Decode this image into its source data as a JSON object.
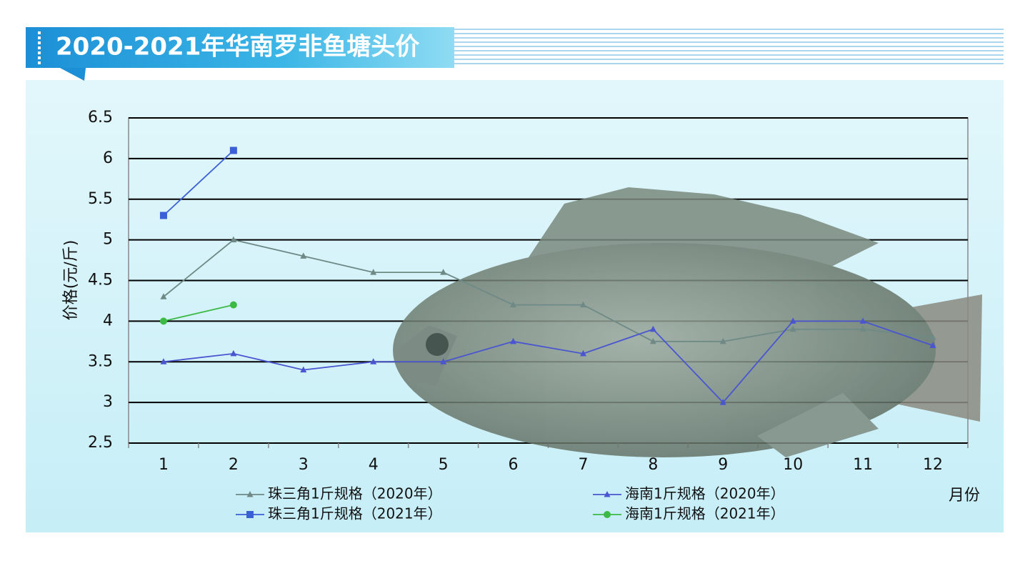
{
  "chart_data": {
    "type": "line",
    "title": "2020-2021年华南罗非鱼塘头价",
    "y_label": "价格(元/斤)",
    "x_label": "月份",
    "categories": [
      "1",
      "2",
      "3",
      "4",
      "5",
      "6",
      "7",
      "8",
      "9",
      "10",
      "11",
      "12"
    ],
    "series": [
      {
        "name": "珠三角1斤规格（2020年）",
        "color": "#6f8a86",
        "marker": "triangle",
        "values": [
          4.3,
          5.0,
          4.8,
          4.6,
          4.6,
          4.2,
          4.2,
          3.75,
          3.75,
          3.9,
          3.9,
          3.8
        ]
      },
      {
        "name": "海南1斤规格（2020年）",
        "color": "#4a55d0",
        "marker": "triangle",
        "values": [
          3.5,
          3.6,
          3.4,
          3.5,
          3.5,
          3.75,
          3.6,
          3.9,
          3.0,
          4.0,
          4.0,
          3.7
        ]
      },
      {
        "name": "珠三角1斤规格（2021年）",
        "color": "#3a5fd6",
        "marker": "square",
        "values": [
          5.3,
          6.1,
          null,
          null,
          null,
          null,
          null,
          null,
          null,
          null,
          null,
          null
        ]
      },
      {
        "name": "海南1斤规格（2021年）",
        "color": "#3cba45",
        "marker": "circle",
        "values": [
          4.0,
          4.2,
          null,
          null,
          null,
          null,
          null,
          null,
          null,
          null,
          null,
          null
        ]
      }
    ],
    "ylim": [
      2.5,
      6.5
    ],
    "yticks": [
      2.5,
      3,
      3.5,
      4,
      4.5,
      5,
      5.5,
      6,
      6.5
    ],
    "grid": true
  }
}
